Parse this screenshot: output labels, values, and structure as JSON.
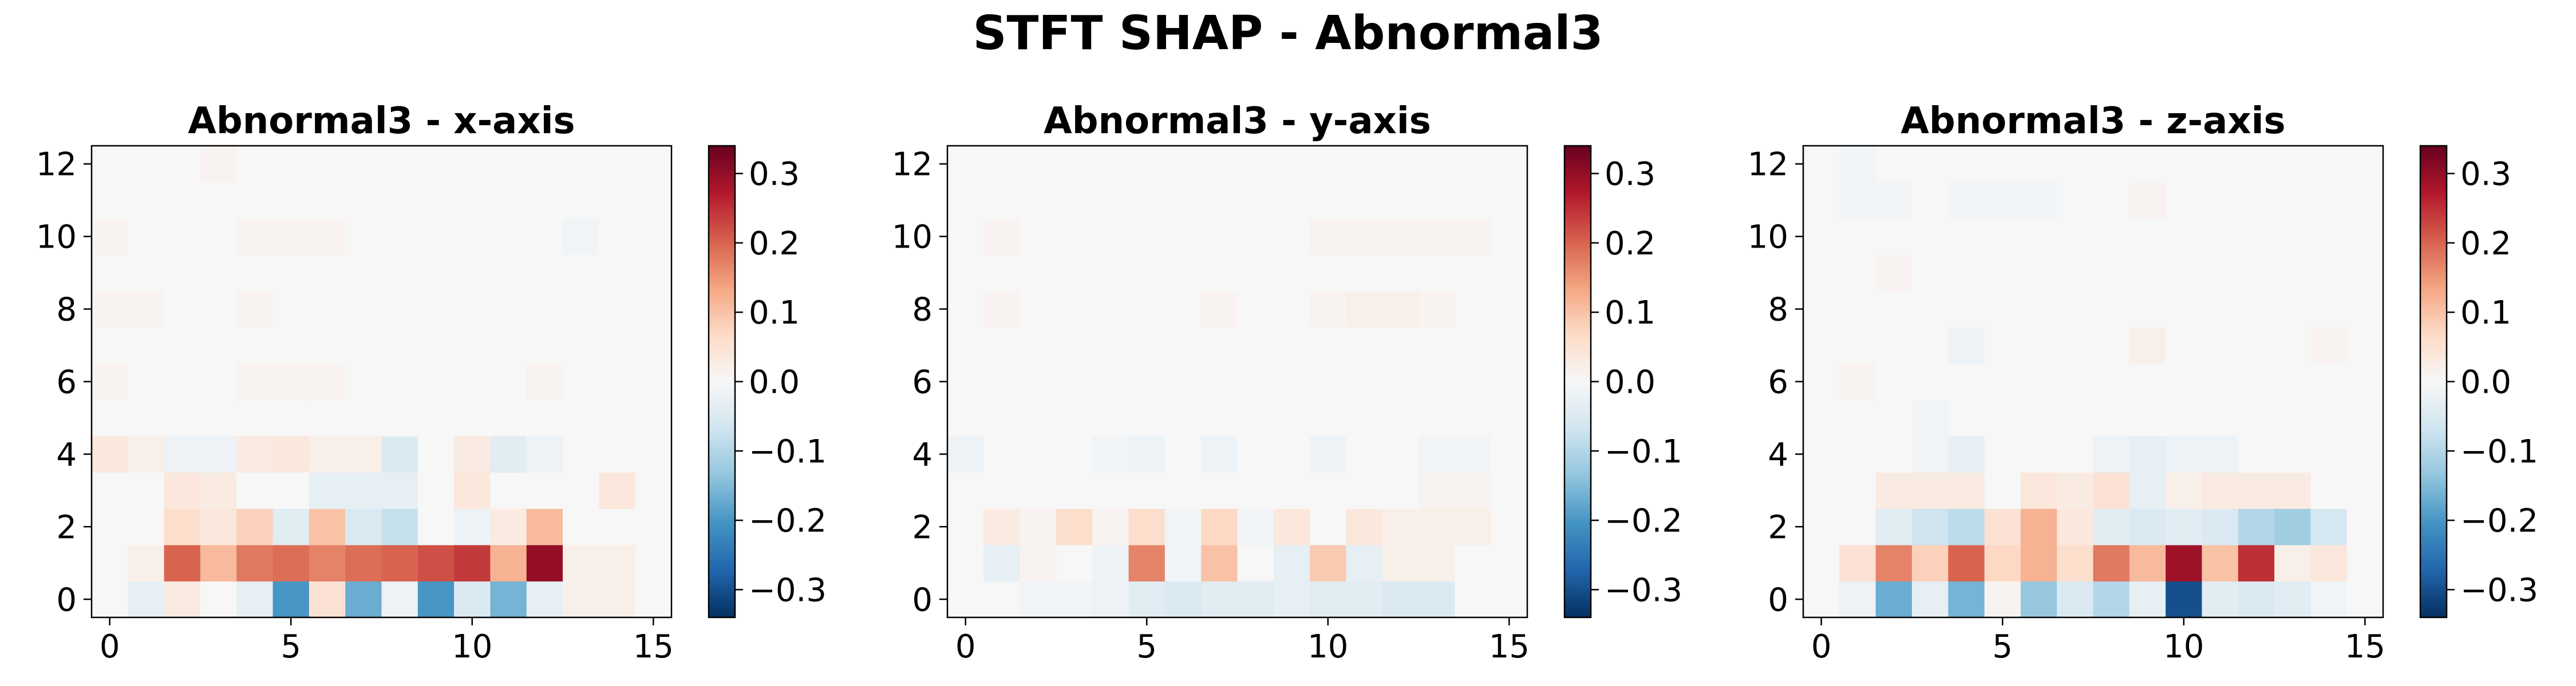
{
  "figure": {
    "title": "STFT SHAP - Abnormal3"
  },
  "colormap": {
    "name": "RdBu_r",
    "stops": [
      "#053061",
      "#2166ac",
      "#4393c3",
      "#92c5de",
      "#d1e5f0",
      "#f7f7f7",
      "#fddbc7",
      "#f4a582",
      "#d6604d",
      "#b2182b",
      "#67001f"
    ]
  },
  "chart_data": [
    {
      "type": "heatmap",
      "title": "Abnormal3 - x-axis",
      "xlim": [
        -0.5,
        15.5
      ],
      "ylim": [
        -0.5,
        12.5
      ],
      "xticks": [
        0,
        5,
        10,
        15
      ],
      "yticks": [
        0,
        2,
        4,
        6,
        8,
        10,
        12
      ],
      "vmin": -0.34,
      "vmax": 0.34,
      "colorbar_ticks": [
        -0.3,
        -0.2,
        -0.1,
        0.0,
        0.1,
        0.2,
        0.3
      ],
      "colorbar_tick_labels": [
        "−0.3",
        "−0.2",
        "−0.1",
        "0.0",
        "0.1",
        "0.2",
        "0.3"
      ],
      "rows_y": [
        0,
        1,
        2,
        3,
        4,
        5,
        6,
        7,
        8,
        9,
        10,
        11,
        12
      ],
      "values": [
        [
          0,
          -0.03,
          0.03,
          0,
          -0.03,
          -0.2,
          0.05,
          -0.17,
          -0.02,
          -0.2,
          -0.05,
          -0.16,
          -0.03,
          0.02,
          0.02,
          0
        ],
        [
          0,
          0.02,
          0.2,
          0.11,
          0.18,
          0.19,
          0.17,
          0.19,
          0.2,
          0.22,
          0.24,
          0.12,
          0.3,
          0.02,
          0.02,
          0
        ],
        [
          0,
          0,
          0.06,
          0.04,
          0.08,
          -0.04,
          0.1,
          -0.05,
          -0.08,
          0,
          -0.02,
          0.03,
          0.11,
          0,
          0,
          0
        ],
        [
          0,
          0,
          0.04,
          0.03,
          0,
          0,
          -0.03,
          -0.03,
          -0.03,
          0,
          0.04,
          0,
          0,
          0,
          0.04,
          0
        ],
        [
          0.04,
          0.02,
          -0.02,
          -0.02,
          0.03,
          0.04,
          0.02,
          0.02,
          -0.05,
          0,
          0.03,
          -0.04,
          -0.02,
          0,
          0,
          0
        ],
        [
          0,
          0,
          0,
          0,
          0,
          0,
          0,
          0,
          0,
          0,
          0,
          0,
          0,
          0,
          0,
          0
        ],
        [
          0.01,
          0,
          0,
          0,
          0.01,
          0.01,
          0.01,
          0,
          0,
          0,
          0,
          0,
          0.01,
          0,
          0,
          0
        ],
        [
          0,
          0,
          0,
          0,
          0,
          0,
          0,
          0,
          0,
          0,
          0,
          0,
          0,
          0,
          0,
          0
        ],
        [
          0.01,
          0.01,
          0,
          0,
          0.01,
          0,
          0,
          0,
          0,
          0,
          0,
          0,
          0,
          0,
          0,
          0
        ],
        [
          0,
          0,
          0,
          0,
          0,
          0,
          0,
          0,
          0,
          0,
          0,
          0,
          0,
          0,
          0,
          0
        ],
        [
          0.01,
          0,
          0,
          0,
          0.01,
          0.01,
          0.01,
          0,
          0,
          0,
          0,
          0,
          0,
          -0.01,
          0,
          0
        ],
        [
          0,
          0,
          0,
          0,
          0,
          0,
          0,
          0,
          0,
          0,
          0,
          0,
          0,
          0,
          0,
          0
        ],
        [
          0,
          0,
          0,
          0.01,
          0,
          0,
          0,
          0,
          0,
          0,
          0,
          0,
          0,
          0,
          0,
          0
        ]
      ]
    },
    {
      "type": "heatmap",
      "title": "Abnormal3 - y-axis",
      "xlim": [
        -0.5,
        15.5
      ],
      "ylim": [
        -0.5,
        12.5
      ],
      "xticks": [
        0,
        5,
        10,
        15
      ],
      "yticks": [
        0,
        2,
        4,
        6,
        8,
        10,
        12
      ],
      "vmin": -0.34,
      "vmax": 0.34,
      "colorbar_ticks": [
        -0.3,
        -0.2,
        -0.1,
        0.0,
        0.1,
        0.2,
        0.3
      ],
      "colorbar_tick_labels": [
        "−0.3",
        "−0.2",
        "−0.1",
        "0.0",
        "0.1",
        "0.2",
        "0.3"
      ],
      "rows_y": [
        0,
        1,
        2,
        3,
        4,
        5,
        6,
        7,
        8,
        9,
        10,
        11,
        12
      ],
      "values": [
        [
          0,
          0,
          -0.01,
          -0.01,
          -0.02,
          -0.04,
          -0.05,
          -0.04,
          -0.04,
          -0.03,
          -0.04,
          -0.04,
          -0.05,
          -0.05,
          0,
          0
        ],
        [
          0,
          -0.03,
          0.01,
          0,
          -0.02,
          0.17,
          -0.01,
          0.1,
          0,
          -0.03,
          0.09,
          -0.03,
          0.02,
          0.02,
          0,
          0
        ],
        [
          0,
          0.03,
          0.01,
          0.06,
          0.01,
          0.06,
          -0.01,
          0.07,
          -0.01,
          0.04,
          0,
          0.04,
          0.02,
          0.02,
          0.02,
          0
        ],
        [
          0,
          0,
          0,
          0,
          0,
          0,
          0,
          0,
          0,
          0,
          0,
          0,
          0,
          0.01,
          0.01,
          0
        ],
        [
          -0.02,
          0,
          0,
          0,
          -0.01,
          -0.02,
          0,
          -0.02,
          0,
          0,
          -0.02,
          0,
          0,
          -0.01,
          -0.01,
          0
        ],
        [
          0,
          0,
          0,
          0,
          0,
          0,
          0,
          0,
          0,
          0,
          0,
          0,
          0,
          0,
          0,
          0
        ],
        [
          0,
          0,
          0,
          0,
          0,
          0,
          0,
          0,
          0,
          0,
          0,
          0,
          0,
          0,
          0,
          0
        ],
        [
          0,
          0,
          0,
          0,
          0,
          0,
          0,
          0,
          0,
          0,
          0,
          0,
          0,
          0,
          0,
          0
        ],
        [
          0,
          0.01,
          0,
          0,
          0,
          0,
          0,
          0.01,
          0,
          0,
          0.01,
          0.02,
          0.02,
          0.01,
          0,
          0
        ],
        [
          0,
          0,
          0,
          0,
          0,
          0,
          0,
          0,
          0,
          0,
          0,
          0,
          0,
          0,
          0,
          0
        ],
        [
          0,
          0.01,
          0,
          0,
          0,
          0,
          0,
          0,
          0,
          0,
          0.01,
          0.01,
          0.01,
          0.01,
          0.01,
          0
        ],
        [
          0,
          0,
          0,
          0,
          0,
          0,
          0,
          0,
          0,
          0,
          0,
          0,
          0,
          0,
          0,
          0
        ],
        [
          0,
          0,
          0,
          0,
          0,
          0,
          0,
          0,
          0,
          0,
          0,
          0,
          0,
          0,
          0,
          0
        ]
      ]
    },
    {
      "type": "heatmap",
      "title": "Abnormal3 - z-axis",
      "xlim": [
        -0.5,
        15.5
      ],
      "ylim": [
        -0.5,
        12.5
      ],
      "xticks": [
        0,
        5,
        10,
        15
      ],
      "yticks": [
        0,
        2,
        4,
        6,
        8,
        10,
        12
      ],
      "vmin": -0.34,
      "vmax": 0.34,
      "colorbar_ticks": [
        -0.3,
        -0.2,
        -0.1,
        0.0,
        0.1,
        0.2,
        0.3
      ],
      "colorbar_tick_labels": [
        "−0.3",
        "−0.2",
        "−0.1",
        "0.0",
        "0.1",
        "0.2",
        "0.3"
      ],
      "rows_y": [
        0,
        1,
        2,
        3,
        4,
        5,
        6,
        7,
        8,
        9,
        10,
        11,
        12
      ],
      "values": [
        [
          0,
          -0.02,
          -0.17,
          -0.03,
          -0.16,
          0.01,
          -0.13,
          -0.05,
          -0.1,
          -0.03,
          -0.3,
          -0.04,
          -0.05,
          -0.04,
          -0.01,
          0
        ],
        [
          0,
          0.05,
          0.17,
          0.08,
          0.2,
          0.07,
          0.12,
          0.06,
          0.18,
          0.11,
          0.29,
          0.1,
          0.25,
          0.02,
          0.04,
          0
        ],
        [
          0,
          0,
          -0.04,
          -0.07,
          -0.09,
          0.05,
          0.12,
          0.04,
          -0.04,
          -0.05,
          -0.04,
          -0.05,
          -0.1,
          -0.12,
          -0.06,
          0
        ],
        [
          0,
          0,
          0.03,
          0.03,
          0.03,
          0,
          0.04,
          0.03,
          0.05,
          -0.03,
          0.02,
          0.03,
          0.03,
          0.03,
          0,
          0
        ],
        [
          0,
          0,
          0,
          -0.01,
          -0.03,
          0,
          0,
          0,
          -0.02,
          -0.03,
          -0.02,
          -0.02,
          0,
          0,
          0,
          0
        ],
        [
          0,
          0,
          0,
          -0.01,
          0,
          0,
          0,
          0,
          0,
          0,
          0,
          0,
          0,
          0,
          0,
          0
        ],
        [
          0,
          0.01,
          0,
          0,
          0,
          0,
          0,
          0,
          0,
          0,
          0,
          0,
          0,
          0,
          0,
          0
        ],
        [
          0,
          0,
          0,
          0,
          -0.02,
          0,
          0,
          0,
          0,
          0.02,
          0,
          0,
          0,
          0,
          0.01,
          0
        ],
        [
          0,
          0,
          0,
          0,
          0,
          0,
          0,
          0,
          0,
          0,
          0,
          0,
          0,
          0,
          0,
          0
        ],
        [
          0,
          0,
          0.01,
          0,
          0,
          0,
          0,
          0,
          0,
          0,
          0,
          0,
          0,
          0,
          0,
          0
        ],
        [
          0,
          0,
          0,
          0,
          0,
          0,
          0,
          0,
          0,
          0,
          0,
          0,
          0,
          0,
          0,
          0
        ],
        [
          0,
          -0.01,
          -0.01,
          0,
          -0.01,
          -0.01,
          -0.01,
          0,
          0,
          0.01,
          0,
          0,
          0,
          0,
          0,
          0
        ],
        [
          0,
          -0.01,
          0,
          0,
          0,
          0,
          0,
          0,
          0,
          0,
          0,
          0,
          0,
          0,
          0,
          0
        ]
      ]
    }
  ]
}
